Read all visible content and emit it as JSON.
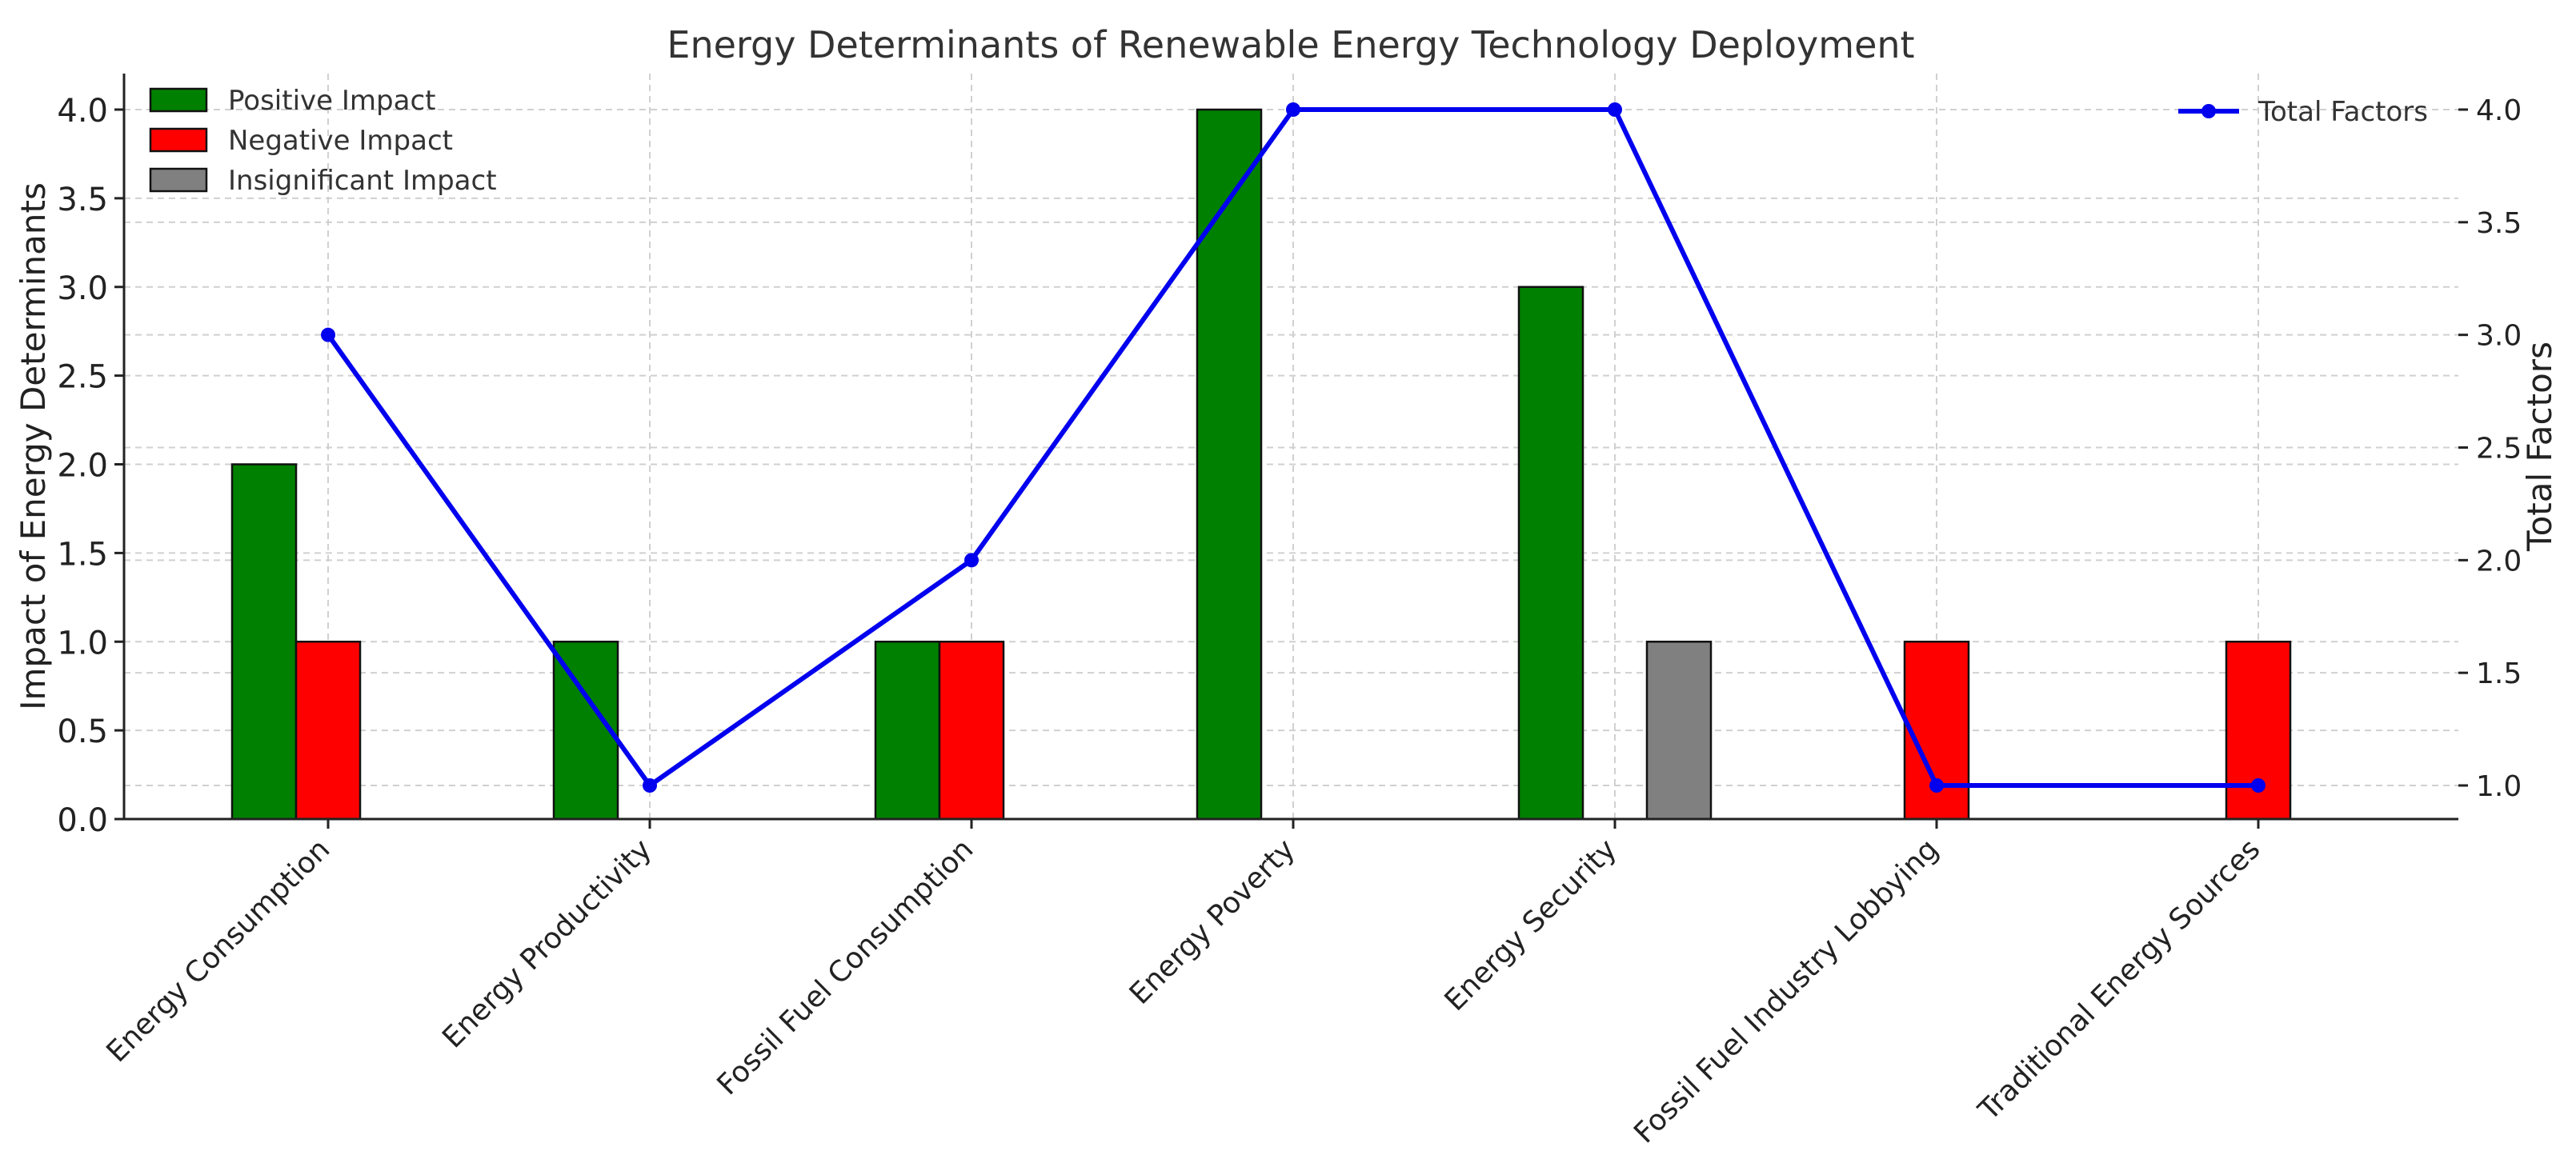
{
  "chart_data": {
    "type": "bar",
    "title": "Energy Determinants of Renewable Energy Technology Deployment",
    "xlabel": "",
    "ylabel": "Impact of Energy Determinants",
    "y2label": "Total Factors",
    "categories": [
      "Energy Consumption",
      "Energy Productivity",
      "Fossil Fuel Consumption",
      "Energy Poverty",
      "Energy Security",
      "Fossil Fuel Industry Lobbying",
      "Traditional Energy Sources"
    ],
    "series": [
      {
        "name": "Positive Impact",
        "color": "#008000",
        "values": [
          2,
          1,
          1,
          4,
          3,
          0,
          0
        ]
      },
      {
        "name": "Negative Impact",
        "color": "#ff0000",
        "values": [
          1,
          0,
          1,
          0,
          0,
          1,
          1
        ]
      },
      {
        "name": "Insignificant Impact",
        "color": "#808080",
        "values": [
          0,
          0,
          0,
          0,
          1,
          0,
          0
        ]
      }
    ],
    "line": {
      "name": "Total Factors",
      "color": "#0000ee",
      "axis": "right",
      "values": [
        3,
        1,
        2,
        4,
        4,
        1,
        1
      ]
    },
    "ylim": [
      0,
      4.2
    ],
    "y2lim": [
      0.85,
      4.1
    ],
    "yticks": [
      "0.0",
      "0.5",
      "1.0",
      "1.5",
      "2.0",
      "2.5",
      "3.0",
      "3.5",
      "4.0"
    ],
    "y2ticks": [
      "1.0",
      "1.5",
      "2.0",
      "2.5",
      "3.0",
      "3.5",
      "4.0"
    ],
    "grid": true,
    "legend_bars": "top-left",
    "legend_line": "top-right"
  }
}
